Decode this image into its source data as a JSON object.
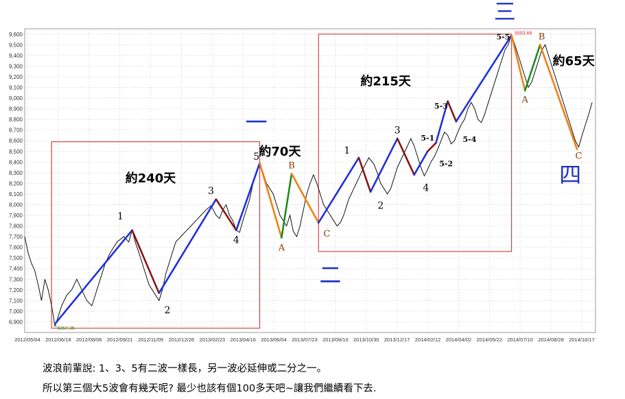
{
  "chart_data": {
    "type": "line",
    "ylim": [
      6800,
      9650
    ],
    "y_ticks": [
      6900,
      7000,
      7100,
      7200,
      7300,
      7400,
      7500,
      7600,
      7700,
      7800,
      7900,
      8000,
      8100,
      8200,
      8300,
      8400,
      8500,
      8600,
      8700,
      8800,
      8900,
      9000,
      9100,
      9200,
      9300,
      9400,
      9500,
      9600
    ],
    "y_tick_labels": [
      "6,900",
      "7,000",
      "7,100",
      "7,200",
      "7,300",
      "7,400",
      "7,500",
      "7,600",
      "7,700",
      "7,800",
      "7,900",
      "8,000",
      "8,100",
      "8,200",
      "8,300",
      "8,400",
      "8,500",
      "8,600",
      "8,700",
      "8,800",
      "8,900",
      "9,000",
      "9,100",
      "9,200",
      "9,300",
      "9,400",
      "9,500",
      "9,600"
    ],
    "x_tick_labels": [
      "2012/05/04",
      "2012/06/18",
      "2012/08/06",
      "2012/09/21",
      "2012/11/09",
      "2012/12/26",
      "2013/02/23",
      "2013/04/16",
      "2013/06/04",
      "2013/07/23",
      "2013/09/10",
      "2013/10/30",
      "2013/12/17",
      "2014/02/12",
      "2014/04/02",
      "2014/05/22",
      "2014/07/10",
      "2014/08/28",
      "2014/10/17"
    ],
    "grid": true,
    "series": [
      {
        "points": [
          [
            0,
            7700
          ],
          [
            2,
            7550
          ],
          [
            4,
            7450
          ],
          [
            6,
            7380
          ],
          [
            8,
            7250
          ],
          [
            10,
            7100
          ],
          [
            12,
            7300
          ],
          [
            14,
            7200
          ],
          [
            16,
            7050
          ],
          [
            17,
            6960
          ],
          [
            18,
            6857
          ],
          [
            20,
            6950
          ],
          [
            22,
            7050
          ],
          [
            25,
            7150
          ],
          [
            28,
            7200
          ],
          [
            31,
            7300
          ],
          [
            34,
            7200
          ],
          [
            37,
            7100
          ],
          [
            40,
            7050
          ],
          [
            42,
            7150
          ],
          [
            45,
            7300
          ],
          [
            48,
            7450
          ],
          [
            51,
            7550
          ],
          [
            55,
            7650
          ],
          [
            59,
            7700
          ],
          [
            62,
            7650
          ],
          [
            64,
            7760
          ],
          [
            66,
            7640
          ],
          [
            68,
            7550
          ],
          [
            70,
            7450
          ],
          [
            72,
            7350
          ],
          [
            74,
            7250
          ],
          [
            76,
            7200
          ],
          [
            78,
            7150
          ],
          [
            80,
            7100
          ],
          [
            82,
            7200
          ],
          [
            84,
            7350
          ],
          [
            86,
            7450
          ],
          [
            88,
            7550
          ],
          [
            90,
            7650
          ],
          [
            93,
            7700
          ],
          [
            96,
            7750
          ],
          [
            99,
            7800
          ],
          [
            102,
            7850
          ],
          [
            105,
            7900
          ],
          [
            108,
            7950
          ],
          [
            111,
            7990
          ],
          [
            114,
            7900
          ],
          [
            116,
            7870
          ],
          [
            118,
            7950
          ],
          [
            120,
            8000
          ],
          [
            122,
            7900
          ],
          [
            124,
            7850
          ],
          [
            126,
            7760
          ],
          [
            128,
            7740
          ],
          [
            130,
            7850
          ],
          [
            132,
            7950
          ],
          [
            134,
            8050
          ],
          [
            136,
            8200
          ],
          [
            138,
            8300
          ],
          [
            140,
            8380
          ],
          [
            142,
            8300
          ],
          [
            144,
            8200
          ],
          [
            146,
            8150
          ],
          [
            148,
            8100
          ],
          [
            150,
            8000
          ],
          [
            152,
            7900
          ],
          [
            154,
            7850
          ],
          [
            156,
            7800
          ],
          [
            158,
            7900
          ],
          [
            160,
            7750
          ],
          [
            162,
            7700
          ],
          [
            164,
            7800
          ],
          [
            166,
            7950
          ],
          [
            168,
            8100
          ],
          [
            170,
            8200
          ],
          [
            172,
            8280
          ],
          [
            174,
            8200
          ],
          [
            176,
            8100
          ],
          [
            178,
            8000
          ],
          [
            180,
            7950
          ],
          [
            182,
            7900
          ],
          [
            184,
            7850
          ],
          [
            186,
            7800
          ],
          [
            188,
            7830
          ],
          [
            190,
            7900
          ],
          [
            193,
            8050
          ],
          [
            196,
            8150
          ],
          [
            199,
            8250
          ],
          [
            202,
            8350
          ],
          [
            205,
            8440
          ],
          [
            208,
            8380
          ],
          [
            210,
            8300
          ],
          [
            212,
            8200
          ],
          [
            214,
            8150
          ],
          [
            216,
            8100
          ],
          [
            218,
            8150
          ],
          [
            220,
            8250
          ],
          [
            222,
            8350
          ],
          [
            225,
            8450
          ],
          [
            228,
            8550
          ],
          [
            230,
            8620
          ],
          [
            232,
            8550
          ],
          [
            234,
            8450
          ],
          [
            236,
            8350
          ],
          [
            238,
            8270
          ],
          [
            240,
            8330
          ],
          [
            242,
            8400
          ],
          [
            244,
            8450
          ],
          [
            246,
            8520
          ],
          [
            248,
            8600
          ],
          [
            250,
            8680
          ],
          [
            252,
            8650
          ],
          [
            254,
            8570
          ],
          [
            256,
            8600
          ],
          [
            258,
            8680
          ],
          [
            260,
            8750
          ],
          [
            262,
            8800
          ],
          [
            264,
            8900
          ],
          [
            266,
            8960
          ],
          [
            268,
            8900
          ],
          [
            270,
            8800
          ],
          [
            272,
            8770
          ],
          [
            274,
            8850
          ],
          [
            276,
            8950
          ],
          [
            278,
            9050
          ],
          [
            280,
            9150
          ],
          [
            282,
            9250
          ],
          [
            284,
            9350
          ],
          [
            286,
            9450
          ],
          [
            288,
            9500
          ],
          [
            290,
            9593
          ],
          [
            292,
            9500
          ],
          [
            294,
            9400
          ],
          [
            296,
            9300
          ],
          [
            298,
            9200
          ],
          [
            300,
            9100
          ],
          [
            302,
            9150
          ],
          [
            304,
            9250
          ],
          [
            306,
            9350
          ],
          [
            308,
            9450
          ],
          [
            310,
            9500
          ],
          [
            312,
            9400
          ],
          [
            314,
            9300
          ],
          [
            316,
            9200
          ],
          [
            318,
            9100
          ],
          [
            320,
            9000
          ],
          [
            322,
            8900
          ],
          [
            324,
            8800
          ],
          [
            326,
            8700
          ],
          [
            328,
            8600
          ],
          [
            330,
            8540
          ],
          [
            332,
            8650
          ],
          [
            334,
            8750
          ],
          [
            336,
            8850
          ],
          [
            338,
            8960
          ]
        ]
      }
    ],
    "wave_lines": [
      {
        "color": "#1f2fdc",
        "from": [
          18,
          6880
        ],
        "to": [
          64,
          7760
        ]
      },
      {
        "color": "#8a1414",
        "from": [
          64,
          7760
        ],
        "to": [
          80,
          7170
        ]
      },
      {
        "color": "#1f2fdc",
        "from": [
          80,
          7170
        ],
        "to": [
          114,
          8050
        ]
      },
      {
        "color": "#8a1414",
        "from": [
          114,
          8050
        ],
        "to": [
          126,
          7760
        ]
      },
      {
        "color": "#1f2fdc",
        "from": [
          126,
          7760
        ],
        "to": [
          140,
          8390
        ]
      },
      {
        "color": "#f08010",
        "from": [
          140,
          8390
        ],
        "to": [
          153,
          7690
        ]
      },
      {
        "color": "#1f8a1f",
        "from": [
          153,
          7690
        ],
        "to": [
          159,
          8290
        ]
      },
      {
        "color": "#f08010",
        "from": [
          159,
          8290
        ],
        "to": [
          175,
          7830
        ]
      },
      {
        "color": "#1f2fdc",
        "from": [
          175,
          7830
        ],
        "to": [
          199,
          8440
        ]
      },
      {
        "color": "#8a1414",
        "from": [
          199,
          8440
        ],
        "to": [
          206,
          8120
        ]
      },
      {
        "color": "#1f2fdc",
        "from": [
          206,
          8120
        ],
        "to": [
          222,
          8620
        ]
      },
      {
        "color": "#8a1414",
        "from": [
          222,
          8620
        ],
        "to": [
          232,
          8280
        ]
      },
      {
        "color": "#1f2fdc",
        "from": [
          232,
          8280
        ],
        "to": [
          240,
          8500
        ]
      },
      {
        "color": "#8a1414",
        "from": [
          240,
          8500
        ],
        "to": [
          245,
          8580
        ]
      },
      {
        "color": "#1f2fdc",
        "from": [
          245,
          8580
        ],
        "to": [
          252,
          8970
        ]
      },
      {
        "color": "#8a1414",
        "from": [
          252,
          8970
        ],
        "to": [
          257,
          8780
        ]
      },
      {
        "color": "#1f2fdc",
        "from": [
          257,
          8780
        ],
        "to": [
          290,
          9590
        ]
      },
      {
        "color": "#f08010",
        "from": [
          290,
          9590
        ],
        "to": [
          298,
          9070
        ]
      },
      {
        "color": "#1f8a1f",
        "from": [
          298,
          9070
        ],
        "to": [
          307,
          9500
        ]
      },
      {
        "color": "#f08010",
        "from": [
          307,
          9500
        ],
        "to": [
          329,
          8520
        ]
      }
    ],
    "boxes": [
      {
        "x0": 16,
        "x1": 140,
        "y0": 6840,
        "y1": 8590
      },
      {
        "x0": 175,
        "x1": 290,
        "y0": 7560,
        "y1": 9600
      }
    ],
    "annotations": {
      "wave_labels": [
        {
          "text": "1",
          "x": 57,
          "y": 7860
        },
        {
          "text": "2",
          "x": 85,
          "y": 6980
        },
        {
          "text": "3",
          "x": 111,
          "y": 8100
        },
        {
          "text": "4",
          "x": 126,
          "y": 7640
        },
        {
          "text": "5",
          "x": 138,
          "y": 8420
        },
        {
          "text": "1",
          "x": 192,
          "y": 8480
        },
        {
          "text": "2",
          "x": 212,
          "y": 7960
        },
        {
          "text": "3",
          "x": 222,
          "y": 8670
        },
        {
          "text": "4",
          "x": 239,
          "y": 8130
        }
      ],
      "sub_labels": [
        {
          "text": "5-1",
          "x": 240,
          "y": 8600
        },
        {
          "text": "5-2",
          "x": 251,
          "y": 8360
        },
        {
          "text": "5-3",
          "x": 248,
          "y": 8900
        },
        {
          "text": "5-4",
          "x": 265,
          "y": 8590
        },
        {
          "text": "5-5",
          "x": 285,
          "y": 9550
        }
      ],
      "abc_labels": [
        {
          "text": "A",
          "x": 153,
          "y": 7570
        },
        {
          "text": "B",
          "x": 159,
          "y": 8340
        },
        {
          "text": "C",
          "x": 180,
          "y": 7700
        },
        {
          "text": "A",
          "x": 298,
          "y": 8960
        },
        {
          "text": "B",
          "x": 308,
          "y": 9550
        },
        {
          "text": "C",
          "x": 330,
          "y": 8430
        }
      ],
      "day_labels": [
        {
          "text": "約240天",
          "x": 75,
          "y": 8210
        },
        {
          "text": "約70天",
          "x": 152,
          "y": 8460
        },
        {
          "text": "約215天",
          "x": 215,
          "y": 9120
        },
        {
          "text": "約65天",
          "x": 327,
          "y": 9310
        }
      ],
      "cjk_labels": [
        {
          "text": "一",
          "x": 138,
          "y": 8700
        },
        {
          "text": "二",
          "x": 182,
          "y": 7270
        },
        {
          "text": "三",
          "x": 286,
          "y": 9740
        },
        {
          "text": "四",
          "x": 325,
          "y": 8210
        }
      ],
      "high_label": {
        "text": "9593.68",
        "x": 291,
        "y": 9620
      },
      "low_label": {
        "text": "6857.35",
        "x": 19,
        "y": 6840
      }
    },
    "caption_lines": [
      "波浪前輩說: 1、3、5有二波一樣長，另一波必延伸或二分之一。",
      "所以第三個大5波會有幾天呢? 最少也該有個100多天吧~讓我們繼續看下去."
    ]
  }
}
